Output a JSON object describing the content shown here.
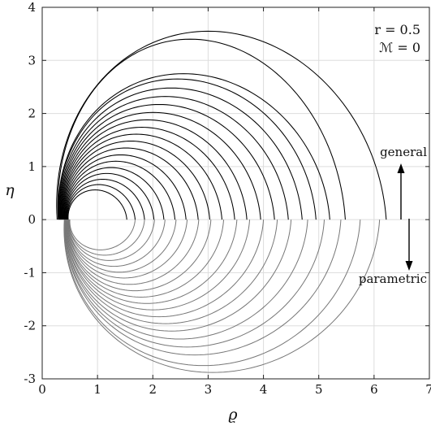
{
  "chart_data": {
    "type": "line",
    "title": "",
    "xlabel": "ϱ",
    "ylabel": "η",
    "xlim": [
      0,
      7
    ],
    "ylim": [
      -3,
      4
    ],
    "xticks": [
      0,
      1,
      2,
      3,
      4,
      5,
      6,
      7
    ],
    "yticks": [
      -3,
      -2,
      -1,
      0,
      1,
      2,
      3,
      4
    ],
    "xtick_labels": [
      "0",
      "1",
      "2",
      "3",
      "4",
      "5",
      "6",
      "7"
    ],
    "ytick_labels": [
      "-3",
      "-2",
      "-1",
      "0",
      "1",
      "2",
      "3",
      "4"
    ],
    "grid": true,
    "annotations": {
      "params_line1": "r = 0.5",
      "params_line2": "ℳ = 0",
      "upper_label": "general",
      "lower_label": "parametric"
    },
    "colors": {
      "general": "#000000",
      "parametric": "#777777",
      "grid": "#dddddd"
    },
    "series": [
      {
        "curve_points": {
          "upper": [
            {
              "x_left": 0.27,
              "x_right": 6.22,
              "peak": 3.55
            },
            {
              "x_left": 0.29,
              "x_right": 5.48,
              "peak": 3.4
            },
            {
              "x_left": 0.3,
              "x_right": 5.2,
              "peak": 2.75
            },
            {
              "x_left": 0.31,
              "x_right": 4.95,
              "peak": 2.65
            },
            {
              "x_left": 0.32,
              "x_right": 4.7,
              "peak": 2.48
            },
            {
              "x_left": 0.33,
              "x_right": 4.45,
              "peak": 2.32
            },
            {
              "x_left": 0.34,
              "x_right": 4.2,
              "peak": 2.17
            },
            {
              "x_left": 0.35,
              "x_right": 3.95,
              "peak": 2.02
            },
            {
              "x_left": 0.36,
              "x_right": 3.7,
              "peak": 1.88
            },
            {
              "x_left": 0.37,
              "x_right": 3.48,
              "peak": 1.74
            },
            {
              "x_left": 0.38,
              "x_right": 3.25,
              "peak": 1.61
            },
            {
              "x_left": 0.39,
              "x_right": 3.03,
              "peak": 1.48
            },
            {
              "x_left": 0.4,
              "x_right": 2.82,
              "peak": 1.35
            },
            {
              "x_left": 0.41,
              "x_right": 2.6,
              "peak": 1.22
            },
            {
              "x_left": 0.42,
              "x_right": 2.4,
              "peak": 1.1
            },
            {
              "x_left": 0.43,
              "x_right": 2.2,
              "peak": 0.98
            },
            {
              "x_left": 0.44,
              "x_right": 2.02,
              "peak": 0.87
            },
            {
              "x_left": 0.45,
              "x_right": 1.85,
              "peak": 0.76
            },
            {
              "x_left": 0.46,
              "x_right": 1.68,
              "peak": 0.66
            },
            {
              "x_left": 0.47,
              "x_right": 1.53,
              "peak": 0.56
            }
          ],
          "lower": [
            {
              "x_left": 0.4,
              "x_right": 6.1,
              "trough": -2.88
            },
            {
              "x_left": 0.41,
              "x_right": 5.75,
              "trough": -2.75
            },
            {
              "x_left": 0.42,
              "x_right": 5.4,
              "trough": -2.55
            },
            {
              "x_left": 0.42,
              "x_right": 5.1,
              "trough": -2.4
            },
            {
              "x_left": 0.43,
              "x_right": 4.8,
              "trough": -2.25
            },
            {
              "x_left": 0.43,
              "x_right": 4.5,
              "trough": -2.1
            },
            {
              "x_left": 0.44,
              "x_right": 4.25,
              "trough": -1.96
            },
            {
              "x_left": 0.44,
              "x_right": 4.0,
              "trough": -1.83
            },
            {
              "x_left": 0.45,
              "x_right": 3.75,
              "trough": -1.7
            },
            {
              "x_left": 0.45,
              "x_right": 3.52,
              "trough": -1.58
            },
            {
              "x_left": 0.46,
              "x_right": 3.28,
              "trough": -1.46
            },
            {
              "x_left": 0.46,
              "x_right": 3.05,
              "trough": -1.34
            },
            {
              "x_left": 0.47,
              "x_right": 2.83,
              "trough": -1.22
            },
            {
              "x_left": 0.47,
              "x_right": 2.62,
              "trough": -1.1
            },
            {
              "x_left": 0.48,
              "x_right": 2.42,
              "trough": -0.99
            },
            {
              "x_left": 0.48,
              "x_right": 2.22,
              "trough": -0.88
            },
            {
              "x_left": 0.49,
              "x_right": 2.03,
              "trough": -0.77
            },
            {
              "x_left": 0.49,
              "x_right": 1.85,
              "trough": -0.67
            },
            {
              "x_left": 0.5,
              "x_right": 1.68,
              "trough": -0.57
            }
          ]
        }
      }
    ]
  }
}
